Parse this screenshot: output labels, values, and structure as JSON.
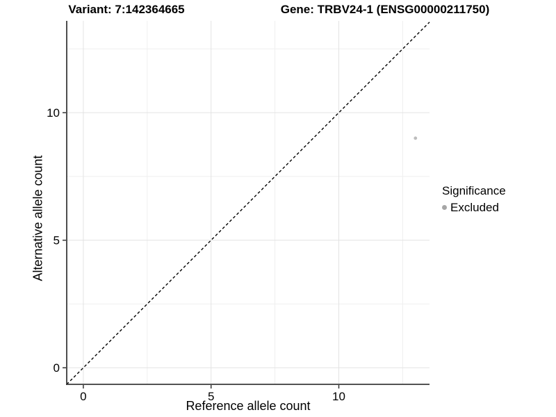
{
  "chart_data": {
    "type": "scatter",
    "title_variant": "Variant: 7:142364665",
    "title_gene": "Gene: TRBV24-1 (ENSG00000211750)",
    "xlabel": "Reference allele count",
    "ylabel": "Alternative allele count",
    "xlim": [
      -0.65,
      13.55
    ],
    "ylim": [
      -0.65,
      13.6
    ],
    "x_major_ticks": [
      0,
      5,
      10
    ],
    "y_major_ticks": [
      0,
      5,
      10
    ],
    "x_minor_gridlines": [
      2.5,
      7.5,
      12.5
    ],
    "y_minor_gridlines": [
      2.5,
      7.5,
      12.5
    ],
    "grid": "major and minor gridlines on, white panel background",
    "identity_line": {
      "slope": 1,
      "intercept": 0,
      "style": "dashed",
      "color": "#000000"
    },
    "series": [
      {
        "name": "Excluded",
        "point_color": "#bdbdbd",
        "legend_key_color": "#a6a6a6",
        "points": [
          [
            13,
            9
          ]
        ]
      }
    ],
    "legend": {
      "title": "Significance",
      "position": "right"
    },
    "colors": {
      "grid_major": "#e3e3e3",
      "grid_minor": "#efefef",
      "axis_line": "#3a3a3a",
      "tick_mark": "#333333",
      "tick_label": "#000000"
    }
  }
}
